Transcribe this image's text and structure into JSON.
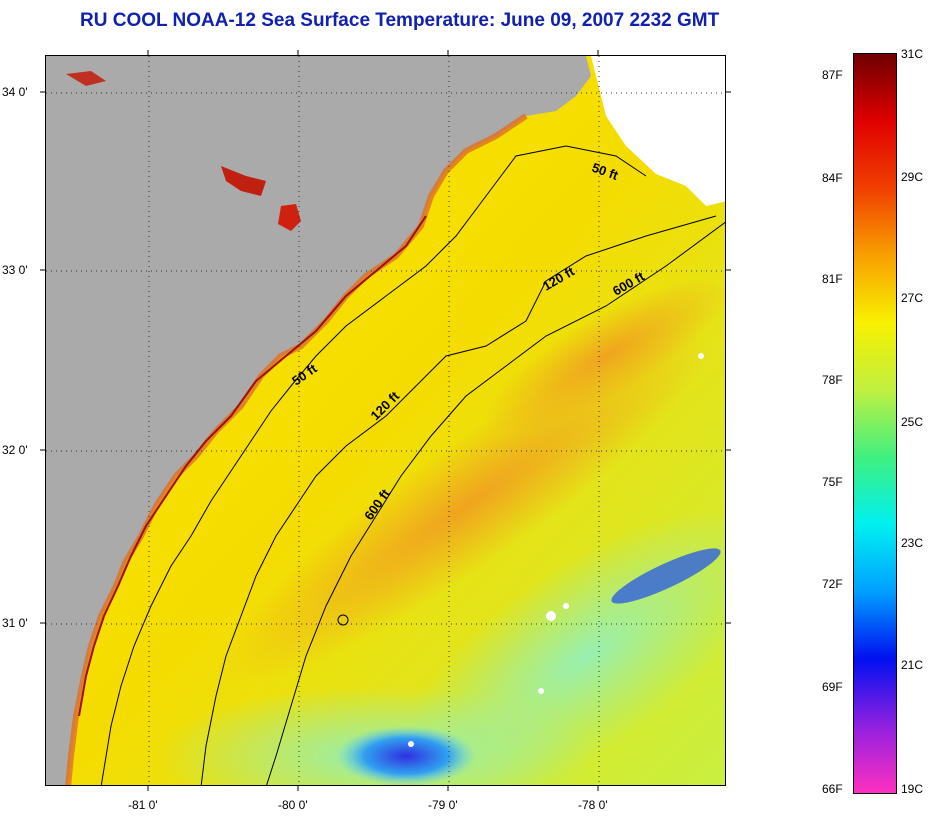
{
  "title": "RU COOL  NOAA-12  Sea Surface Temperature:  June 09, 2007 2232 GMT",
  "map": {
    "lat_labels": [
      "34 0'",
      "33 0'",
      "32 0'",
      "31 0'"
    ],
    "lon_labels": [
      "-81 0'",
      "-80 0'",
      "-79 0'",
      "-78 0'"
    ],
    "isobath_labels": [
      "50 ft",
      "50 ft",
      "120 ft",
      "120 ft",
      "600 ft",
      "600 ft"
    ],
    "colors": {
      "land": "#aaaaaa",
      "cloud": "#ffffff",
      "warm_sea": "#f7e300",
      "hot_sea": "#f0a020",
      "cool_sea": "#b8f050",
      "cold_sea": "#30a0f0",
      "coast_hot": "#a01010"
    }
  },
  "colorbar": {
    "fahrenheit": [
      "87F",
      "84F",
      "81F",
      "78F",
      "75F",
      "72F",
      "69F",
      "66F"
    ],
    "celsius": [
      "31C",
      "29C",
      "27C",
      "25C",
      "23C",
      "21C",
      "19C"
    ],
    "gradient": [
      "#ff30c0",
      "#9020e0",
      "#0010f0",
      "#00a0ff",
      "#00f0f0",
      "#40f080",
      "#c0f040",
      "#f8f000",
      "#f8a000",
      "#f04000",
      "#e00000",
      "#700000"
    ]
  }
}
